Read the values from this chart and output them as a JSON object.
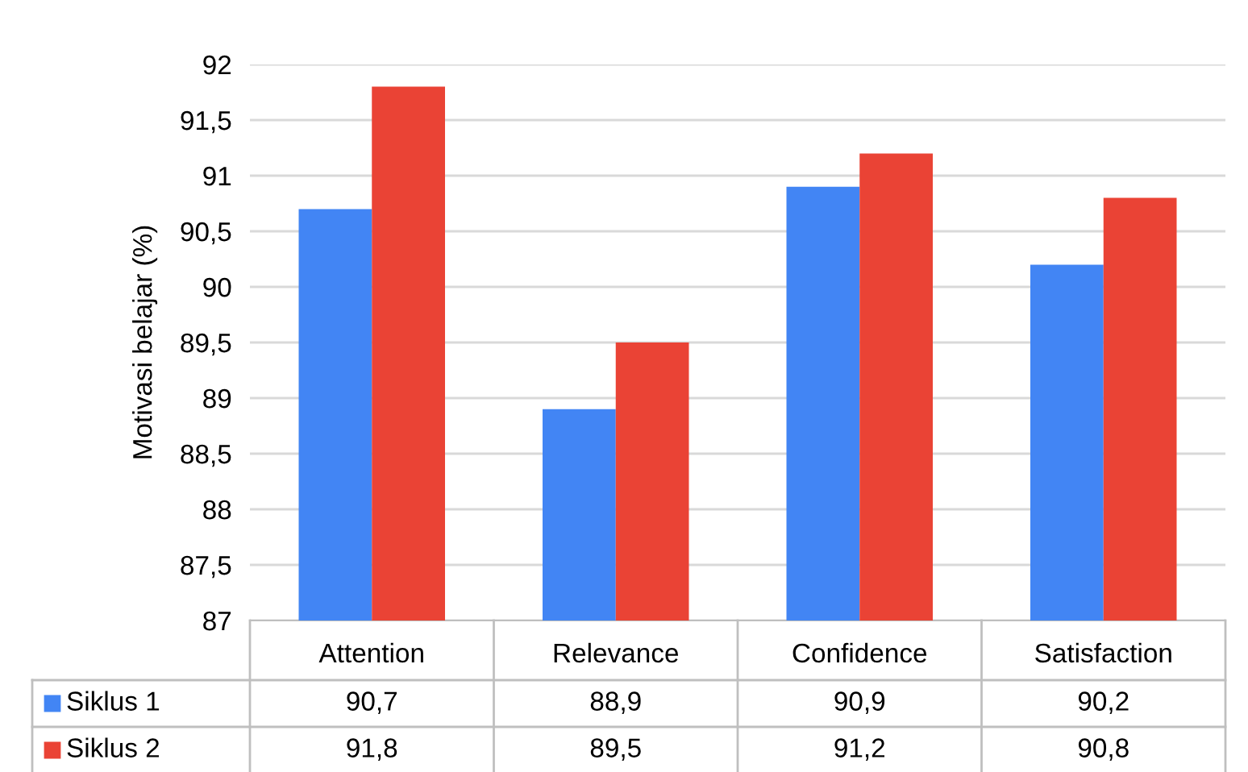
{
  "chart_data": {
    "type": "bar",
    "ylabel": "Motivasi belajar (%)",
    "categories": [
      "Attention",
      "Relevance",
      "Confidence",
      "Satisfaction"
    ],
    "series": [
      {
        "name": "Siklus 1",
        "color": "#4285f4",
        "values": [
          90.7,
          88.9,
          90.9,
          90.2
        ],
        "value_labels": [
          "90,7",
          "88,9",
          "90,9",
          "90,2"
        ]
      },
      {
        "name": "Siklus 2",
        "color": "#ea4335",
        "values": [
          91.8,
          89.5,
          91.2,
          90.8
        ],
        "value_labels": [
          "91,8",
          "89,5",
          "91,2",
          "90,8"
        ]
      }
    ],
    "ylim": [
      87,
      92
    ],
    "yticks": [
      87,
      {
        "value": 87.5,
        "label": "87,5"
      },
      88,
      {
        "value": 88.5,
        "label": "88,5"
      },
      89,
      {
        "value": 89.5,
        "label": "89,5"
      },
      90,
      {
        "value": 90.5,
        "label": "90,5"
      },
      91,
      {
        "value": 91.5,
        "label": "91,5"
      },
      92
    ],
    "grid": "y",
    "legend": "bottom left"
  }
}
